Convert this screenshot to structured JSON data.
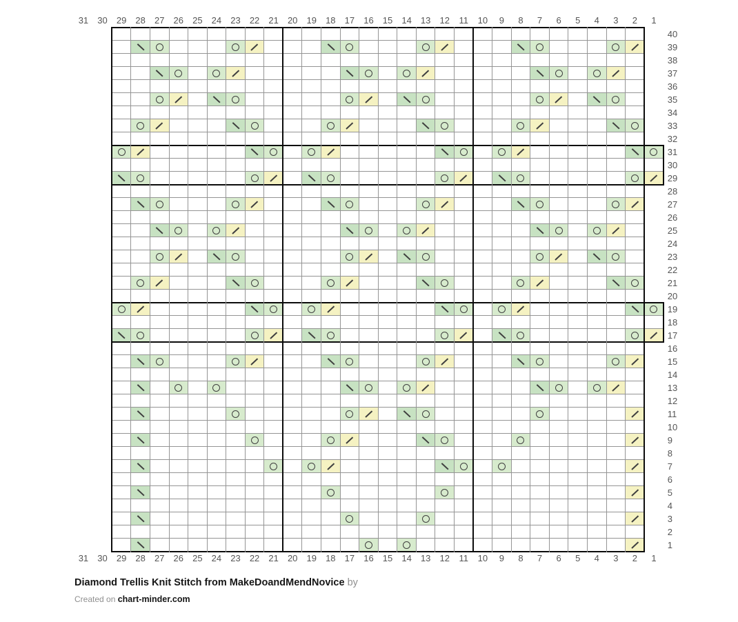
{
  "caption": {
    "title": "Diamond Trellis Knit Stitch from MakeDoandMendNovice",
    "by_suffix": "by",
    "created_prefix": "Created on",
    "site": "chart-minder.com"
  },
  "chart_data": {
    "type": "heatmap",
    "title": "Diamond Trellis Knit Stitch from MakeDoandMendNovice",
    "columns": 31,
    "row_count": 40,
    "grid": "on",
    "col_labels": [
      "31",
      "30",
      "29",
      "28",
      "27",
      "26",
      "25",
      "24",
      "23",
      "22",
      "21",
      "20",
      "19",
      "18",
      "17",
      "16",
      "15",
      "14",
      "13",
      "12",
      "11",
      "10",
      "9",
      "8",
      "7",
      "6",
      "5",
      "4",
      "3",
      "2",
      "1"
    ],
    "row_labels": [
      "40",
      "39",
      "38",
      "37",
      "36",
      "35",
      "34",
      "33",
      "32",
      "31",
      "30",
      "29",
      "28",
      "27",
      "26",
      "25",
      "24",
      "23",
      "22",
      "21",
      "20",
      "19",
      "18",
      "17",
      "16",
      "15",
      "14",
      "13",
      "12",
      "11",
      "10",
      "9",
      "8",
      "7",
      "6",
      "5",
      "4",
      "3",
      "2",
      "1"
    ],
    "symbols": {
      "ssk": {
        "name": "ssk",
        "glyph": "backslash",
        "color": "#c7e2c2"
      },
      "yo": {
        "name": "yo",
        "glyph": "circle",
        "color": "#d7ebcd"
      },
      "k2tog": {
        "name": "k2tog",
        "glyph": "slash",
        "color": "#f5f2c2"
      }
    },
    "extension_rows": [
      31,
      30,
      29,
      19,
      18,
      17
    ],
    "rows": [
      {
        "row": 39,
        "cells": [
          [
            28,
            "ssk"
          ],
          [
            27,
            "yo"
          ],
          [
            23,
            "yo"
          ],
          [
            22,
            "k2tog"
          ],
          [
            18,
            "ssk"
          ],
          [
            17,
            "yo"
          ],
          [
            13,
            "yo"
          ],
          [
            12,
            "k2tog"
          ],
          [
            8,
            "ssk"
          ],
          [
            7,
            "yo"
          ],
          [
            3,
            "yo"
          ],
          [
            2,
            "k2tog"
          ]
        ]
      },
      {
        "row": 37,
        "cells": [
          [
            27,
            "ssk"
          ],
          [
            26,
            "yo"
          ],
          [
            24,
            "yo"
          ],
          [
            23,
            "k2tog"
          ],
          [
            17,
            "ssk"
          ],
          [
            16,
            "yo"
          ],
          [
            14,
            "yo"
          ],
          [
            13,
            "k2tog"
          ],
          [
            7,
            "ssk"
          ],
          [
            6,
            "yo"
          ],
          [
            4,
            "yo"
          ],
          [
            3,
            "k2tog"
          ]
        ]
      },
      {
        "row": 35,
        "cells": [
          [
            27,
            "yo"
          ],
          [
            26,
            "k2tog"
          ],
          [
            24,
            "ssk"
          ],
          [
            23,
            "yo"
          ],
          [
            17,
            "yo"
          ],
          [
            16,
            "k2tog"
          ],
          [
            14,
            "ssk"
          ],
          [
            13,
            "yo"
          ],
          [
            7,
            "yo"
          ],
          [
            6,
            "k2tog"
          ],
          [
            4,
            "ssk"
          ],
          [
            3,
            "yo"
          ]
        ]
      },
      {
        "row": 33,
        "cells": [
          [
            28,
            "yo"
          ],
          [
            27,
            "k2tog"
          ],
          [
            23,
            "ssk"
          ],
          [
            22,
            "yo"
          ],
          [
            18,
            "yo"
          ],
          [
            17,
            "k2tog"
          ],
          [
            13,
            "ssk"
          ],
          [
            12,
            "yo"
          ],
          [
            8,
            "yo"
          ],
          [
            7,
            "k2tog"
          ],
          [
            3,
            "ssk"
          ],
          [
            2,
            "yo"
          ]
        ]
      },
      {
        "row": 31,
        "cells": [
          [
            29,
            "yo"
          ],
          [
            28,
            "k2tog"
          ],
          [
            22,
            "ssk"
          ],
          [
            21,
            "yo"
          ],
          [
            19,
            "yo"
          ],
          [
            18,
            "k2tog"
          ],
          [
            12,
            "ssk"
          ],
          [
            11,
            "yo"
          ],
          [
            9,
            "yo"
          ],
          [
            8,
            "k2tog"
          ],
          [
            2,
            "ssk"
          ],
          [
            1,
            "yo"
          ]
        ]
      },
      {
        "row": 29,
        "cells": [
          [
            29,
            "ssk"
          ],
          [
            28,
            "yo"
          ],
          [
            22,
            "yo"
          ],
          [
            21,
            "k2tog"
          ],
          [
            19,
            "ssk"
          ],
          [
            18,
            "yo"
          ],
          [
            12,
            "yo"
          ],
          [
            11,
            "k2tog"
          ],
          [
            9,
            "ssk"
          ],
          [
            8,
            "yo"
          ],
          [
            2,
            "yo"
          ],
          [
            1,
            "k2tog"
          ]
        ]
      },
      {
        "row": 27,
        "cells": [
          [
            28,
            "ssk"
          ],
          [
            27,
            "yo"
          ],
          [
            23,
            "yo"
          ],
          [
            22,
            "k2tog"
          ],
          [
            18,
            "ssk"
          ],
          [
            17,
            "yo"
          ],
          [
            13,
            "yo"
          ],
          [
            12,
            "k2tog"
          ],
          [
            8,
            "ssk"
          ],
          [
            7,
            "yo"
          ],
          [
            3,
            "yo"
          ],
          [
            2,
            "k2tog"
          ]
        ]
      },
      {
        "row": 25,
        "cells": [
          [
            27,
            "ssk"
          ],
          [
            26,
            "yo"
          ],
          [
            24,
            "yo"
          ],
          [
            23,
            "k2tog"
          ],
          [
            17,
            "ssk"
          ],
          [
            16,
            "yo"
          ],
          [
            14,
            "yo"
          ],
          [
            13,
            "k2tog"
          ],
          [
            7,
            "ssk"
          ],
          [
            6,
            "yo"
          ],
          [
            4,
            "yo"
          ],
          [
            3,
            "k2tog"
          ]
        ]
      },
      {
        "row": 23,
        "cells": [
          [
            27,
            "yo"
          ],
          [
            26,
            "k2tog"
          ],
          [
            24,
            "ssk"
          ],
          [
            23,
            "yo"
          ],
          [
            17,
            "yo"
          ],
          [
            16,
            "k2tog"
          ],
          [
            14,
            "ssk"
          ],
          [
            13,
            "yo"
          ],
          [
            7,
            "yo"
          ],
          [
            6,
            "k2tog"
          ],
          [
            4,
            "ssk"
          ],
          [
            3,
            "yo"
          ]
        ]
      },
      {
        "row": 21,
        "cells": [
          [
            28,
            "yo"
          ],
          [
            27,
            "k2tog"
          ],
          [
            23,
            "ssk"
          ],
          [
            22,
            "yo"
          ],
          [
            18,
            "yo"
          ],
          [
            17,
            "k2tog"
          ],
          [
            13,
            "ssk"
          ],
          [
            12,
            "yo"
          ],
          [
            8,
            "yo"
          ],
          [
            7,
            "k2tog"
          ],
          [
            3,
            "ssk"
          ],
          [
            2,
            "yo"
          ]
        ]
      },
      {
        "row": 19,
        "cells": [
          [
            29,
            "yo"
          ],
          [
            28,
            "k2tog"
          ],
          [
            22,
            "ssk"
          ],
          [
            21,
            "yo"
          ],
          [
            19,
            "yo"
          ],
          [
            18,
            "k2tog"
          ],
          [
            12,
            "ssk"
          ],
          [
            11,
            "yo"
          ],
          [
            9,
            "yo"
          ],
          [
            8,
            "k2tog"
          ],
          [
            2,
            "ssk"
          ],
          [
            1,
            "yo"
          ]
        ]
      },
      {
        "row": 17,
        "cells": [
          [
            29,
            "ssk"
          ],
          [
            28,
            "yo"
          ],
          [
            22,
            "yo"
          ],
          [
            21,
            "k2tog"
          ],
          [
            19,
            "ssk"
          ],
          [
            18,
            "yo"
          ],
          [
            12,
            "yo"
          ],
          [
            11,
            "k2tog"
          ],
          [
            9,
            "ssk"
          ],
          [
            8,
            "yo"
          ],
          [
            2,
            "yo"
          ],
          [
            1,
            "k2tog"
          ]
        ]
      },
      {
        "row": 15,
        "cells": [
          [
            28,
            "ssk"
          ],
          [
            27,
            "yo"
          ],
          [
            23,
            "yo"
          ],
          [
            22,
            "k2tog"
          ],
          [
            18,
            "ssk"
          ],
          [
            17,
            "yo"
          ],
          [
            13,
            "yo"
          ],
          [
            12,
            "k2tog"
          ],
          [
            8,
            "ssk"
          ],
          [
            7,
            "yo"
          ],
          [
            3,
            "yo"
          ],
          [
            2,
            "k2tog"
          ]
        ]
      },
      {
        "row": 13,
        "cells": [
          [
            28,
            "ssk"
          ],
          [
            26,
            "yo"
          ],
          [
            24,
            "yo"
          ],
          [
            17,
            "ssk"
          ],
          [
            16,
            "yo"
          ],
          [
            14,
            "yo"
          ],
          [
            13,
            "k2tog"
          ],
          [
            7,
            "ssk"
          ],
          [
            6,
            "yo"
          ],
          [
            4,
            "yo"
          ],
          [
            3,
            "k2tog"
          ]
        ]
      },
      {
        "row": 11,
        "cells": [
          [
            28,
            "ssk"
          ],
          [
            23,
            "yo"
          ],
          [
            17,
            "yo"
          ],
          [
            16,
            "k2tog"
          ],
          [
            14,
            "ssk"
          ],
          [
            13,
            "yo"
          ],
          [
            7,
            "yo"
          ],
          [
            2,
            "k2tog"
          ]
        ]
      },
      {
        "row": 9,
        "cells": [
          [
            28,
            "ssk"
          ],
          [
            22,
            "yo"
          ],
          [
            18,
            "yo"
          ],
          [
            17,
            "k2tog"
          ],
          [
            13,
            "ssk"
          ],
          [
            12,
            "yo"
          ],
          [
            8,
            "yo"
          ],
          [
            2,
            "k2tog"
          ]
        ]
      },
      {
        "row": 7,
        "cells": [
          [
            28,
            "ssk"
          ],
          [
            21,
            "yo"
          ],
          [
            19,
            "yo"
          ],
          [
            18,
            "k2tog"
          ],
          [
            12,
            "ssk"
          ],
          [
            11,
            "yo"
          ],
          [
            9,
            "yo"
          ],
          [
            2,
            "k2tog"
          ]
        ]
      },
      {
        "row": 5,
        "cells": [
          [
            28,
            "ssk"
          ],
          [
            18,
            "yo"
          ],
          [
            12,
            "yo"
          ],
          [
            2,
            "k2tog"
          ]
        ]
      },
      {
        "row": 3,
        "cells": [
          [
            28,
            "ssk"
          ],
          [
            17,
            "yo"
          ],
          [
            13,
            "yo"
          ],
          [
            2,
            "k2tog"
          ]
        ]
      },
      {
        "row": 1,
        "cells": [
          [
            28,
            "ssk"
          ],
          [
            16,
            "yo"
          ],
          [
            14,
            "yo"
          ],
          [
            2,
            "k2tog"
          ]
        ]
      }
    ]
  }
}
